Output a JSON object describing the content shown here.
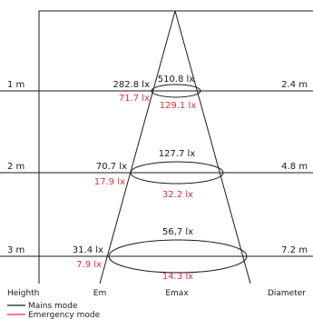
{
  "levels": [
    {
      "height": "1 m",
      "em_mains": "282.8 lx",
      "emax_mains": "510.8 lx",
      "em_emergency": "71.7 lx",
      "emax_emergency": "129.1 lx",
      "diameter": "2.4 m"
    },
    {
      "height": "2 m",
      "em_mains": "70.7 lx",
      "emax_mains": "127.7 lx",
      "em_emergency": "17.9 lx",
      "emax_emergency": "32.2 lx",
      "diameter": "4.8 m"
    },
    {
      "height": "3 m",
      "em_mains": "31.4 lx",
      "emax_mains": "56,7 lx",
      "em_emergency": "7.9 lx",
      "emax_emergency": "14.3 lx",
      "diameter": "7.2 m"
    }
  ],
  "axis": {
    "heighth": "Heighth",
    "em": "Em",
    "emax": "Emax",
    "diameter": "Diameter"
  },
  "legend": [
    {
      "label": "Mains mode",
      "color": "#1a1a1a"
    },
    {
      "label": "Emergency mode",
      "color": "#e8303a"
    }
  ]
}
